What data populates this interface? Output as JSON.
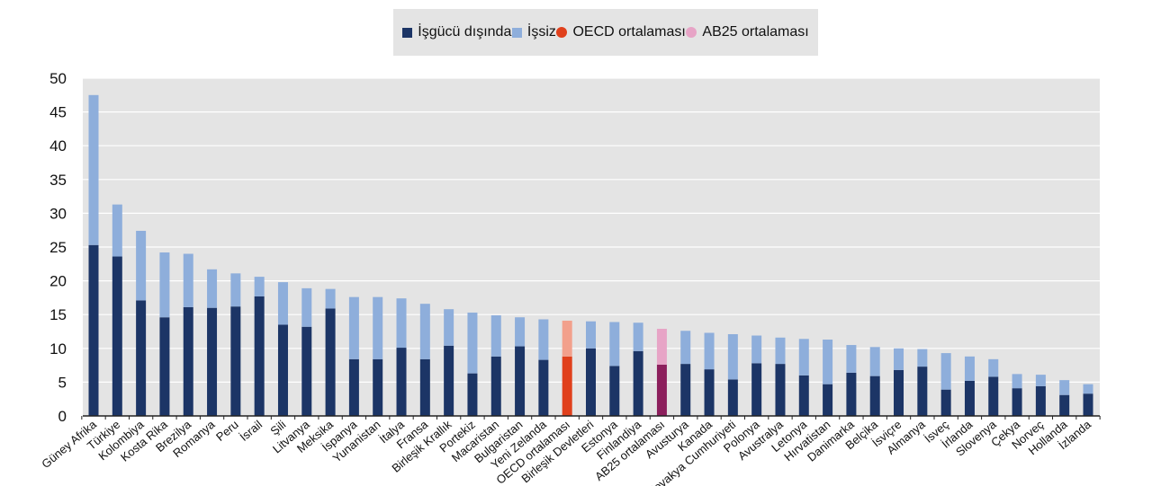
{
  "legend": {
    "items": [
      {
        "label": "İşgücü dışında",
        "color": "#1c3566",
        "shape": "square"
      },
      {
        "label": "İşsiz",
        "color": "#8eaedb",
        "shape": "square"
      },
      {
        "label": "OECD ortalaması",
        "color": "#e0401c",
        "shape": "circle"
      },
      {
        "label": "AB25 ortalaması",
        "color": "#e7a4c6",
        "shape": "circle"
      }
    ]
  },
  "chart_data": {
    "type": "bar",
    "stacked": true,
    "ylim": [
      0,
      50
    ],
    "yticks": [
      0,
      5,
      10,
      15,
      20,
      25,
      30,
      35,
      40,
      45,
      50
    ],
    "grid": true,
    "legend_position": "top",
    "categories": [
      "Güney Afrika",
      "Türkiye",
      "Kolombiya",
      "Kosta Rika",
      "Brezilya",
      "Romanya",
      "Peru",
      "İsrail",
      "Şili",
      "Litvanya",
      "Meksika",
      "İspanya",
      "Yunanistan",
      "İtalya",
      "Fransa",
      "Birleşik Krallık",
      "Portekiz",
      "Macaristan",
      "Bulgaristan",
      "Yeni Zelanda",
      "OECD ortalaması",
      "Birleşik Devletleri",
      "Estonya",
      "Finlandiya",
      "AB25 ortalaması",
      "Avusturya",
      "Kanada",
      "Slovakya Cumhuriyeti",
      "Polonya",
      "Avustralya",
      "Letonya",
      "Hırvatistan",
      "Danimarka",
      "Belçika",
      "İsviçre",
      "Almanya",
      "İsveç",
      "İrlanda",
      "Slovenya",
      "Çekya",
      "Norveç",
      "Hollanda",
      "İzlanda"
    ],
    "series": [
      {
        "name": "İşgücü dışında",
        "values": [
          25.3,
          23.6,
          17.1,
          14.6,
          16.1,
          16.0,
          16.2,
          17.7,
          13.5,
          13.2,
          15.9,
          8.4,
          8.4,
          10.1,
          8.4,
          10.4,
          6.3,
          8.8,
          10.3,
          8.3,
          8.8,
          10.0,
          7.4,
          9.6,
          7.6,
          7.7,
          6.9,
          5.4,
          7.8,
          7.7,
          6.0,
          4.7,
          6.4,
          5.9,
          6.8,
          7.3,
          3.9,
          5.2,
          5.8,
          4.1,
          4.4,
          3.1,
          3.3
        ]
      },
      {
        "name": "İşsiz",
        "values": [
          22.2,
          7.7,
          10.3,
          9.6,
          7.9,
          5.7,
          4.9,
          2.9,
          6.3,
          5.7,
          2.9,
          9.2,
          9.2,
          7.3,
          8.2,
          5.4,
          9.0,
          6.1,
          4.3,
          6.0,
          5.3,
          4.0,
          6.5,
          4.2,
          5.3,
          4.9,
          5.4,
          6.7,
          4.1,
          3.9,
          5.4,
          6.6,
          4.1,
          4.3,
          3.2,
          2.6,
          5.4,
          3.6,
          2.6,
          2.1,
          1.7,
          2.2,
          1.4
        ]
      }
    ],
    "highlight_colors": {
      "OECD ortalaması": [
        "#e0401c",
        "#f2a08c"
      ],
      "AB25 ortalaması": [
        "#8c1f5c",
        "#e7a4c6"
      ]
    }
  }
}
